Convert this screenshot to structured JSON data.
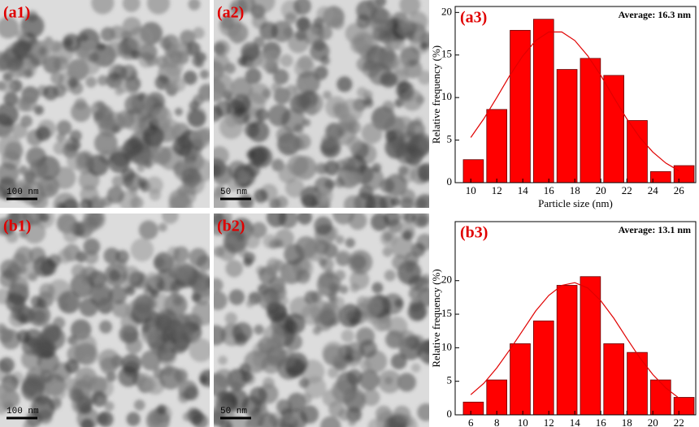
{
  "panels": [
    {
      "label": "(a1)",
      "scale": "100 nm"
    },
    {
      "label": "(a2)",
      "scale": "50 nm"
    },
    {
      "label": "(b1)",
      "scale": "100 nm"
    },
    {
      "label": "(b2)",
      "scale": "50 nm"
    }
  ],
  "chart_data": [
    {
      "type": "histogram",
      "label": "(a3)",
      "annotation": "Average: 16.3 nm",
      "xlabel": "Particle size (nm)",
      "ylabel": "Relative frequency (%)",
      "bins": [
        9.3,
        11.1,
        12.9,
        14.7,
        16.5,
        18.3,
        20.1,
        21.9,
        23.7,
        25.5,
        27.3
      ],
      "values": [
        2.7,
        8.6,
        17.9,
        19.2,
        13.3,
        14.6,
        12.6,
        7.3,
        1.3,
        2.0
      ],
      "color": "#ff0000",
      "fit": {
        "color": "#e00000",
        "x": [
          10,
          11,
          12,
          13,
          14,
          15,
          16,
          17,
          18,
          19,
          20,
          21,
          22,
          23,
          24,
          25,
          26
        ],
        "values": [
          5.3,
          7.5,
          10.0,
          12.6,
          14.9,
          16.7,
          17.7,
          17.7,
          16.7,
          14.9,
          12.6,
          10.0,
          7.5,
          5.3,
          3.6,
          2.3,
          1.4
        ]
      },
      "xlim": [
        8.8,
        27.3
      ],
      "ylim": [
        0,
        20.7
      ],
      "xticks": [
        10,
        12,
        14,
        16,
        18,
        20,
        22,
        24,
        26
      ],
      "yticks": [
        0,
        5,
        10,
        15,
        20
      ]
    },
    {
      "type": "histogram",
      "label": "(b3)",
      "annotation": "Average: 13.1 nm",
      "xlabel": "Particle size (nm)",
      "ylabel": "Relative frequency (%)",
      "bins": [
        5.3,
        7.1,
        8.9,
        10.7,
        12.5,
        14.3,
        16.1,
        17.9,
        19.7,
        21.5,
        23.3
      ],
      "values": [
        1.9,
        5.2,
        10.6,
        14.0,
        19.3,
        20.6,
        10.6,
        9.3,
        5.2,
        2.6
      ],
      "color": "#ff0000",
      "fit": {
        "color": "#e00000",
        "x": [
          6,
          7,
          8,
          9,
          10,
          11,
          12,
          13,
          14,
          15,
          16,
          17,
          18,
          19,
          20,
          21,
          22
        ],
        "values": [
          3.0,
          4.7,
          7.0,
          9.7,
          12.6,
          15.5,
          17.8,
          19.3,
          19.7,
          18.9,
          17.0,
          14.4,
          11.4,
          8.5,
          6.0,
          4.0,
          2.5
        ]
      },
      "xlim": [
        4.8,
        23.3
      ],
      "ylim": [
        0,
        28.8
      ],
      "xticks": [
        6,
        8,
        10,
        12,
        14,
        16,
        18,
        20,
        22
      ],
      "yticks": [
        0,
        5,
        10,
        15,
        20
      ]
    }
  ]
}
